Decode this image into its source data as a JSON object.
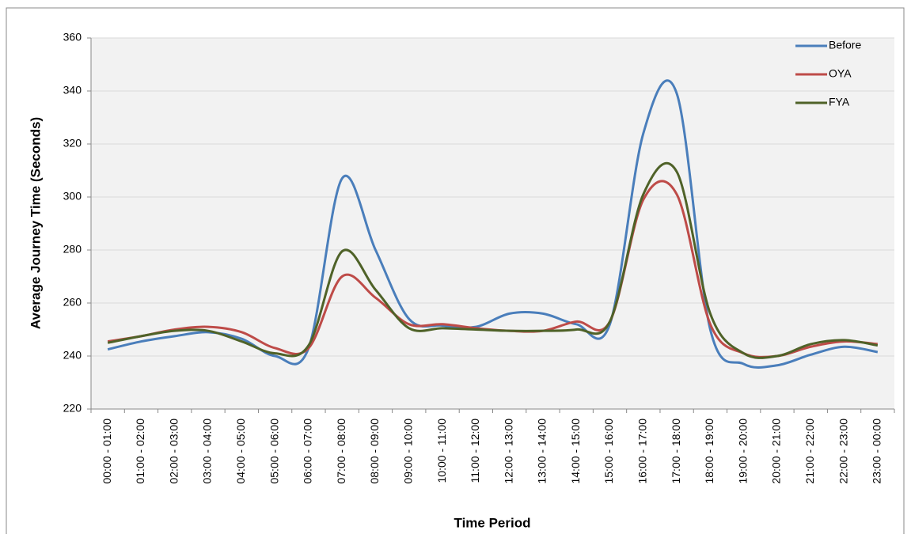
{
  "chart_data": {
    "type": "line",
    "x_label": "Time Period",
    "y_label": "Average Journey Time (Seconds)",
    "categories": [
      "00:00 - 01:00",
      "01:00 - 02:00",
      "02:00 - 03:00",
      "03:00 - 04:00",
      "04:00 - 05:00",
      "05:00 - 06:00",
      "06:00 - 07:00",
      "07:00 - 08:00",
      "08:00 - 09:00",
      "09:00 - 10:00",
      "10:00 - 11:00",
      "11:00 - 12:00",
      "12:00 - 13:00",
      "13:00 - 14:00",
      "14:00 - 15:00",
      "15:00 - 16:00",
      "16:00 - 17:00",
      "17:00 - 18:00",
      "18:00 - 19:00",
      "19:00 - 20:00",
      "20:00 - 21:00",
      "21:00 - 22:00",
      "22:00 - 23:00",
      "23:00 - 00:00"
    ],
    "series": [
      {
        "name": "Before",
        "color": "#4a7ebb",
        "values": [
          242.5,
          245.5,
          247.5,
          249,
          246.5,
          240,
          243,
          307,
          280,
          254,
          251.5,
          251,
          256,
          256,
          252,
          252,
          324,
          339,
          250,
          237,
          236.5,
          240.5,
          243.5,
          241.5
        ]
      },
      {
        "name": "OYA",
        "color": "#be4b48",
        "values": [
          245.5,
          247.5,
          250,
          251,
          249,
          243,
          243,
          270,
          262,
          252,
          252,
          250.5,
          249.5,
          249.5,
          253,
          253,
          299,
          301,
          252,
          241,
          240,
          243.5,
          245.5,
          244.5
        ]
      },
      {
        "name": "FYA",
        "color": "#4f6228",
        "values": [
          245,
          247.5,
          249.5,
          249.5,
          245.5,
          241,
          244,
          279.5,
          265,
          250.5,
          250.5,
          250,
          249.5,
          249.5,
          250,
          253,
          301,
          309.5,
          256,
          241,
          240,
          244.5,
          246,
          244
        ]
      }
    ],
    "ylim": [
      220,
      360
    ],
    "yticks": [
      220,
      240,
      260,
      280,
      300,
      320,
      340,
      360
    ],
    "grid": true,
    "legend": "top-right"
  }
}
